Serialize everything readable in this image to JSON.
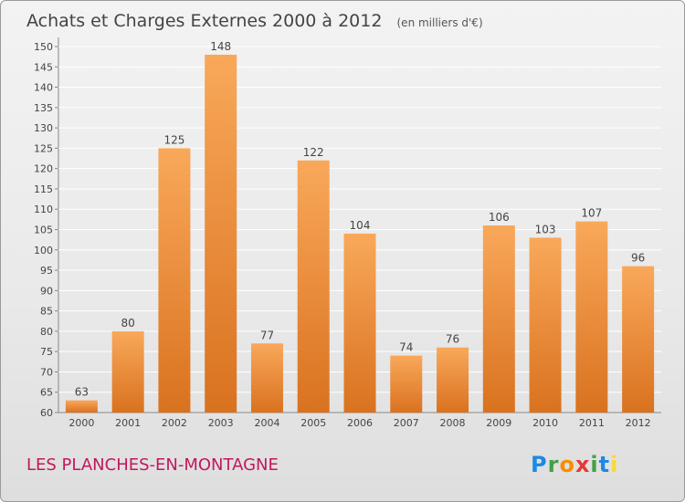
{
  "header": {
    "title": "Achats et Charges Externes 2000 à 2012",
    "unit": "(en milliers d'€)"
  },
  "footer": {
    "place": "LES PLANCHES-EN-MONTAGNE",
    "logo_text": "Proxiti"
  },
  "colors": {
    "bar_light": "#f9a85a",
    "bar_dark": "#d9721f",
    "place_text": "#c2185b",
    "grid": "#ffffff"
  },
  "chart_data": {
    "type": "bar",
    "title": "Achats et Charges Externes 2000 à 2012",
    "subtitle": "(en milliers d'€)",
    "categories": [
      "2000",
      "2001",
      "2002",
      "2003",
      "2004",
      "2005",
      "2006",
      "2007",
      "2008",
      "2009",
      "2010",
      "2011",
      "2012"
    ],
    "values": [
      63,
      80,
      125,
      148,
      77,
      122,
      104,
      74,
      76,
      106,
      103,
      107,
      96
    ],
    "ylim": [
      60,
      150
    ],
    "yticks": [
      60,
      65,
      70,
      75,
      80,
      85,
      90,
      95,
      100,
      105,
      110,
      115,
      120,
      125,
      130,
      135,
      140,
      145,
      150
    ],
    "grid": true,
    "legend": "none"
  }
}
